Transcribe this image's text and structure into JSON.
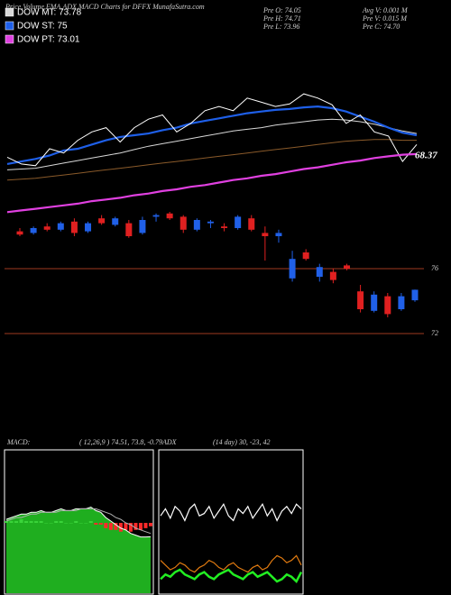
{
  "chart_data": [
    {
      "type": "line",
      "title": "Price,Volume,EMA,ADX,MACD Charts for DFFX  MunafaSutra.com",
      "stats": [
        "Pre  O: 74.05",
        "Avg V: 0.001 M",
        "Pre  H: 74.71",
        "Pre  V: 0.015 M",
        "Pre  L: 73.96",
        "Pre  C: 74.70"
      ],
      "annotation": "68.37",
      "ylim": [
        61,
        77
      ],
      "series": [
        {
          "color": "#8a5a2a",
          "values": [
            65.3,
            65.4,
            65.5,
            65.7,
            65.9,
            66.1,
            66.3,
            66.5,
            66.7,
            66.9,
            67.1,
            67.3,
            67.5,
            67.7,
            67.9,
            68.1,
            68.3,
            68.5,
            68.7,
            68.9,
            69.1,
            69.3,
            69.5,
            69.7,
            69.9,
            70.0,
            70.1,
            70.1,
            70.0,
            70.0
          ]
        },
        {
          "name": "DOW MT: 73.78",
          "color": "#d8d8d8",
          "values": [
            66.5,
            66.6,
            66.7,
            67.0,
            67.3,
            67.6,
            67.9,
            68.2,
            68.5,
            68.9,
            69.3,
            69.6,
            69.9,
            70.2,
            70.5,
            70.8,
            71.1,
            71.3,
            71.5,
            71.8,
            72.0,
            72.2,
            72.4,
            72.5,
            72.4,
            72.2,
            71.9,
            71.5,
            71.1,
            70.8
          ]
        },
        {
          "name": "DOW ST: 75",
          "color": "#1e5fe8",
          "values": [
            67.2,
            67.5,
            67.8,
            68.2,
            68.8,
            69.0,
            69.5,
            70.0,
            70.4,
            70.6,
            70.8,
            71.2,
            71.5,
            72.0,
            72.3,
            72.6,
            72.9,
            73.2,
            73.4,
            73.6,
            73.7,
            73.9,
            74.0,
            73.8,
            73.4,
            72.8,
            72.2,
            71.5,
            70.9,
            70.6
          ]
        },
        {
          "color": "#ffffff",
          "values": [
            68.0,
            67.2,
            67.0,
            69.0,
            68.5,
            70.0,
            71.0,
            71.5,
            69.8,
            71.5,
            72.5,
            73.0,
            71.0,
            72.0,
            73.5,
            74.0,
            73.5,
            75.0,
            74.5,
            74.0,
            74.3,
            75.5,
            75.0,
            74.2,
            72.0,
            73.0,
            71.0,
            70.5,
            67.5,
            69.5
          ]
        },
        {
          "name": "DOW PT: 73.01",
          "color": "#e040e0",
          "values": [
            61.5,
            61.7,
            61.9,
            62.1,
            62.3,
            62.5,
            62.8,
            63.0,
            63.2,
            63.5,
            63.7,
            64.0,
            64.2,
            64.5,
            64.7,
            65.0,
            65.3,
            65.5,
            65.8,
            66.0,
            66.3,
            66.6,
            66.8,
            67.1,
            67.4,
            67.6,
            67.9,
            68.1,
            68.3,
            68.37
          ]
        }
      ]
    },
    {
      "type": "candlestick",
      "ylim": [
        71.7,
        79.3
      ],
      "yticks": [
        72,
        76
      ],
      "up_color": "#2060e8",
      "down_color": "#e02020",
      "line_color": "#a03a20",
      "open": [
        78.3,
        78.2,
        78.6,
        78.4,
        78.9,
        78.3,
        79.1,
        78.7,
        78.8,
        78.2,
        79.2,
        79.4,
        79.2,
        78.4,
        78.8,
        78.6,
        78.5,
        79.1,
        78.2,
        78.0,
        75.4,
        77.0,
        75.5,
        75.8,
        76.2,
        74.6,
        73.4,
        74.3,
        73.5,
        74.05
      ],
      "high": [
        78.5,
        78.6,
        78.8,
        78.9,
        79.1,
        78.9,
        79.3,
        79.2,
        79.0,
        79.2,
        79.4,
        79.5,
        79.3,
        79.1,
        79.0,
        78.8,
        79.3,
        79.3,
        78.6,
        78.4,
        77.1,
        77.2,
        76.3,
        76.0,
        76.3,
        75.0,
        74.6,
        74.5,
        74.5,
        74.71
      ],
      "low": [
        78.0,
        78.1,
        78.3,
        78.3,
        78.0,
        78.2,
        78.7,
        78.6,
        77.9,
        78.1,
        78.9,
        79.0,
        78.2,
        78.3,
        78.5,
        78.3,
        78.4,
        78.3,
        76.5,
        77.6,
        75.2,
        76.5,
        75.2,
        75.1,
        75.9,
        73.3,
        73.3,
        73.0,
        73.4,
        73.96
      ],
      "close": [
        78.1,
        78.5,
        78.4,
        78.8,
        78.2,
        78.8,
        78.8,
        79.1,
        78.0,
        79.0,
        79.3,
        79.1,
        78.4,
        79.0,
        78.9,
        78.5,
        79.2,
        78.4,
        78.0,
        78.2,
        76.6,
        76.6,
        76.1,
        75.3,
        76.0,
        73.5,
        74.4,
        73.2,
        74.3,
        74.7
      ]
    },
    {
      "type": "macd",
      "title": "MACD:",
      "subtitle": "( 12,26,9 ) 74.51, 73.8, -0.79",
      "ylim": [
        -4,
        4
      ],
      "fill_color": "#1fae1f",
      "series": [
        {
          "color": "#ffffff",
          "values": [
            0.2,
            0.3,
            0.4,
            0.5,
            0.5,
            0.6,
            0.6,
            0.7,
            0.6,
            0.6,
            0.7,
            0.8,
            0.7,
            0.7,
            0.8,
            0.8,
            0.8,
            0.9,
            0.7,
            0.6,
            0.3,
            0.1,
            -0.1,
            -0.3,
            -0.4,
            -0.6,
            -0.7,
            -0.8,
            -0.8,
            -0.79
          ]
        },
        {
          "color": "#b0b0b0",
          "values": [
            0.1,
            0.2,
            0.3,
            0.3,
            0.4,
            0.5,
            0.5,
            0.6,
            0.6,
            0.6,
            0.6,
            0.7,
            0.7,
            0.7,
            0.7,
            0.8,
            0.8,
            0.8,
            0.8,
            0.7,
            0.6,
            0.5,
            0.3,
            0.2,
            0.0,
            -0.1,
            -0.3,
            -0.4,
            -0.5,
            -0.6
          ]
        }
      ],
      "histogram": {
        "up_color": "#3ad43a",
        "down_color": "#ff2a2a",
        "values": [
          0.1,
          0.1,
          0.1,
          0.2,
          0.1,
          0.1,
          0.1,
          0.1,
          0,
          0,
          0.1,
          0.1,
          0,
          0,
          0.1,
          0,
          0,
          0.1,
          -0.1,
          -0.1,
          -0.3,
          -0.4,
          -0.4,
          -0.5,
          -0.4,
          -0.5,
          -0.4,
          -0.4,
          -0.3,
          -0.19
        ]
      }
    },
    {
      "type": "adx",
      "title": "ADX",
      "subtitle": "(14  day) 30,  -23,  42",
      "ylim": [
        0,
        60
      ],
      "series": [
        {
          "color": "#ffffff",
          "values": [
            33,
            36,
            32,
            37,
            35,
            31,
            36,
            38,
            33,
            34,
            37,
            32,
            35,
            38,
            33,
            31,
            36,
            34,
            37,
            32,
            35,
            38,
            33,
            36,
            31,
            35,
            37,
            34,
            38,
            36
          ]
        },
        {
          "color": "#e07a10",
          "values": [
            14,
            12,
            10,
            11,
            13,
            12,
            10,
            9,
            11,
            12,
            14,
            13,
            11,
            10,
            12,
            13,
            11,
            10,
            9,
            11,
            12,
            10,
            11,
            14,
            16,
            15,
            13,
            14,
            16,
            12
          ]
        },
        {
          "color": "#22ee22",
          "values": [
            6,
            8,
            7,
            9,
            10,
            8,
            7,
            6,
            8,
            9,
            7,
            6,
            8,
            9,
            10,
            8,
            7,
            6,
            8,
            9,
            7,
            8,
            9,
            7,
            5,
            6,
            8,
            7,
            5,
            9
          ]
        }
      ]
    }
  ]
}
